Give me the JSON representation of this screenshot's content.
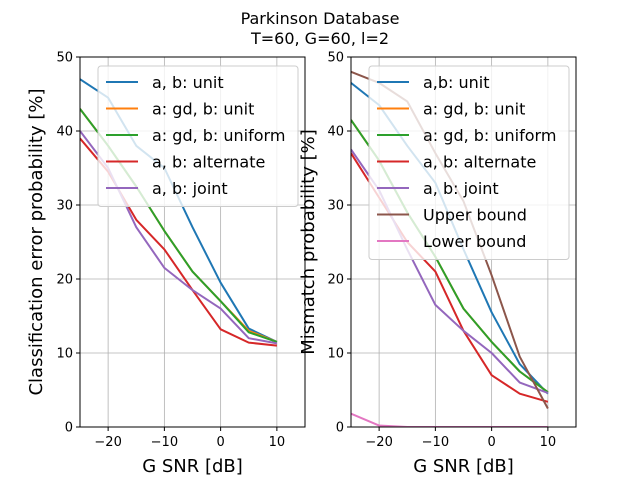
{
  "figure": {
    "title_line1": "Parkinson Database",
    "title_line2": "T=60, G=60, l=2"
  },
  "chart_data": [
    {
      "type": "line",
      "xlabel": "G SNR [dB]",
      "ylabel": "Classification error probability [%]",
      "xlim": [
        -25,
        15
      ],
      "ylim": [
        0,
        50
      ],
      "xticks": [
        -20,
        -10,
        0,
        10
      ],
      "xtick_labels": [
        "−20",
        "−10",
        "0",
        "10"
      ],
      "yticks": [
        0,
        10,
        20,
        30,
        40,
        50
      ],
      "grid": true,
      "legend_position": "top-right",
      "x": [
        -25,
        -20,
        -15,
        -10,
        -5,
        0,
        5,
        10
      ],
      "series": [
        {
          "name": "a, b: unit",
          "color": "#1f77b4",
          "values": [
            47.0,
            44.5,
            38.0,
            35.0,
            27.0,
            19.5,
            13.3,
            11.5
          ]
        },
        {
          "name": "a: gd, b: unit",
          "color": "#ff7f0e",
          "values": [
            43.0,
            38.0,
            32.5,
            26.5,
            21.0,
            17.0,
            13.0,
            11.5
          ]
        },
        {
          "name": "a: gd, b: uniform",
          "color": "#2ca02c",
          "values": [
            43.0,
            38.0,
            32.5,
            26.5,
            21.0,
            17.0,
            12.8,
            11.5
          ]
        },
        {
          "name": "a, b: alternate",
          "color": "#d62728",
          "values": [
            39.0,
            34.5,
            28.0,
            24.0,
            18.5,
            13.2,
            11.4,
            11.0
          ]
        },
        {
          "name": "a, b: joint",
          "color": "#9467bd",
          "values": [
            40.0,
            35.0,
            27.0,
            21.5,
            18.5,
            16.0,
            12.0,
            11.3
          ]
        }
      ]
    },
    {
      "type": "line",
      "xlabel": "G SNR [dB]",
      "ylabel": "Mismatch probability [%]",
      "xlim": [
        -25,
        15
      ],
      "ylim": [
        0,
        50
      ],
      "xticks": [
        -20,
        -10,
        0,
        10
      ],
      "xtick_labels": [
        "−20",
        "−10",
        "0",
        "10"
      ],
      "yticks": [
        0,
        10,
        20,
        30,
        40,
        50
      ],
      "grid": true,
      "legend_position": "top-right",
      "x": [
        -25,
        -20,
        -15,
        -10,
        -5,
        0,
        5,
        10
      ],
      "series": [
        {
          "name": "a,b: unit",
          "color": "#1f77b4",
          "values": [
            46.5,
            43.5,
            38.0,
            33.0,
            24.0,
            15.5,
            8.5,
            4.5
          ]
        },
        {
          "name": "a: gd, b: unit",
          "color": "#ff7f0e",
          "values": [
            41.5,
            36.0,
            29.0,
            23.0,
            16.0,
            11.5,
            7.5,
            4.7
          ]
        },
        {
          "name": "a: gd, b: uniform",
          "color": "#2ca02c",
          "values": [
            41.5,
            36.0,
            29.0,
            23.0,
            16.0,
            11.5,
            7.5,
            4.7
          ]
        },
        {
          "name": "a, b: alternate",
          "color": "#d62728",
          "values": [
            37.0,
            31.0,
            25.0,
            21.0,
            13.0,
            7.0,
            4.5,
            3.4
          ]
        },
        {
          "name": "a, b: joint",
          "color": "#9467bd",
          "values": [
            37.5,
            32.0,
            24.0,
            16.5,
            13.0,
            10.0,
            6.0,
            4.6
          ]
        },
        {
          "name": "Upper bound",
          "color": "#8c564b",
          "values": [
            48.0,
            46.5,
            44.0,
            37.0,
            30.5,
            20.5,
            9.5,
            2.5
          ]
        },
        {
          "name": "Lower bound",
          "color": "#e377c2",
          "values": [
            1.8,
            0.2,
            0.0,
            0.0,
            0.0,
            0.0,
            0.0,
            0.0
          ]
        }
      ]
    }
  ]
}
